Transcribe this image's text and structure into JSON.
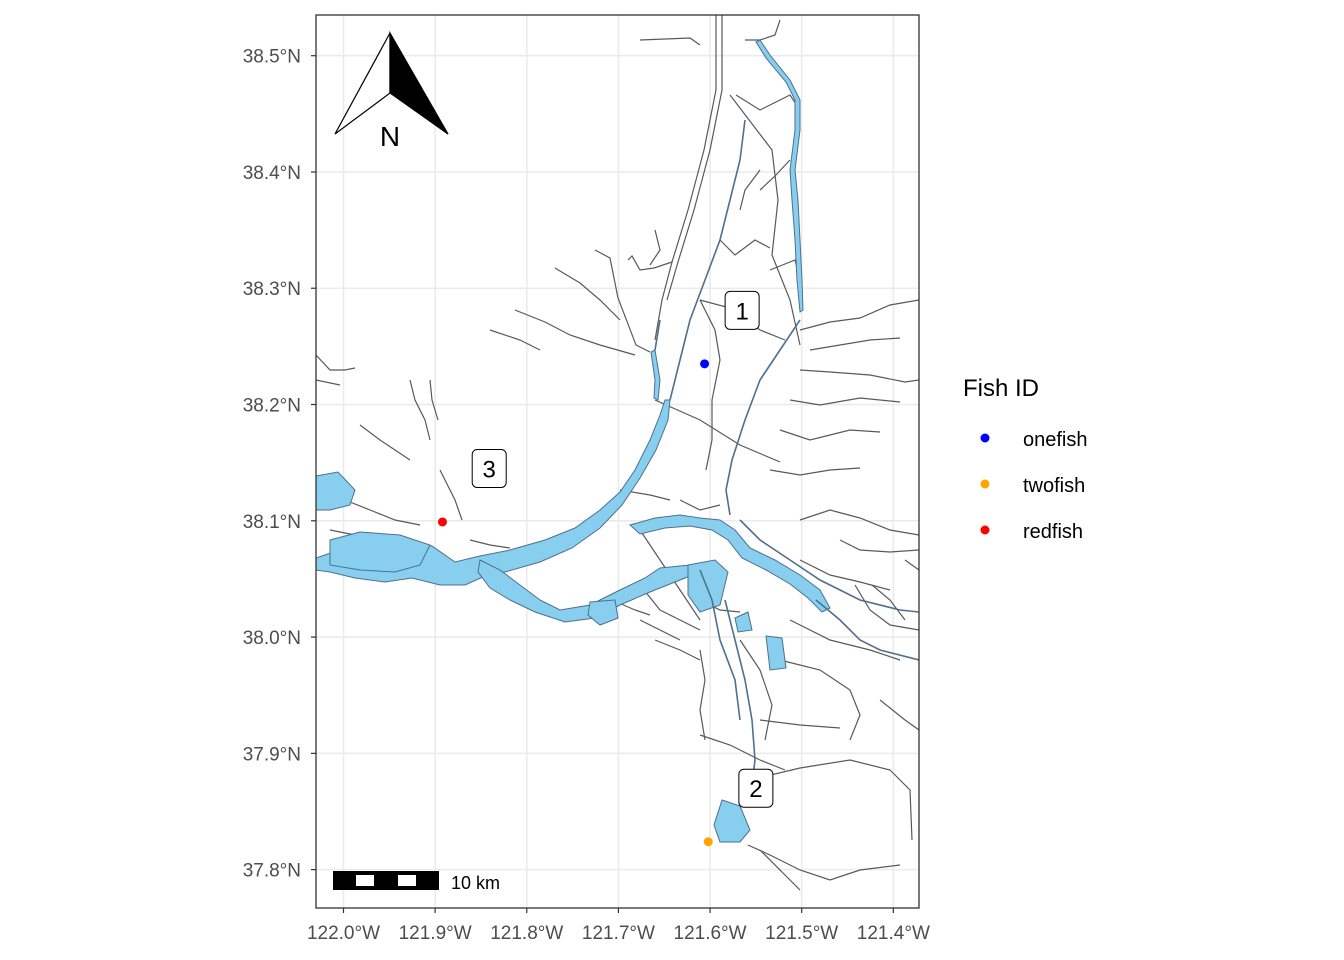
{
  "map": {
    "x_axis": {
      "ticks": [
        "122.0°W",
        "121.9°W",
        "121.8°W",
        "121.7°W",
        "121.6°W",
        "121.5°W",
        "121.4°W"
      ],
      "values": [
        -122.0,
        -121.9,
        -121.8,
        -121.7,
        -121.6,
        -121.5,
        -121.4
      ]
    },
    "y_axis": {
      "ticks": [
        "38.5°N",
        "38.4°N",
        "38.3°N",
        "38.2°N",
        "38.1°N",
        "38.0°N",
        "37.9°N",
        "37.8°N"
      ],
      "values": [
        38.5,
        38.4,
        38.3,
        38.2,
        38.1,
        38.0,
        37.9,
        37.8
      ]
    },
    "lon_range": [
      -122.03,
      -121.372
    ],
    "lat_range": [
      37.767,
      38.535
    ],
    "grid": true,
    "water_color": "#87ceef",
    "channel_color": "#4f6f8f",
    "boundary_color": "#595959",
    "region_labels": [
      {
        "text": "1",
        "lon": -121.565,
        "lat": 38.281
      },
      {
        "text": "3",
        "lon": -121.841,
        "lat": 38.145
      },
      {
        "text": "2",
        "lon": -121.55,
        "lat": 37.87
      }
    ],
    "points": [
      {
        "fish": "onefish",
        "lon": -121.606,
        "lat": 38.235,
        "color": "#0000ff"
      },
      {
        "fish": "twofish",
        "lon": -121.602,
        "lat": 37.824,
        "color": "#ffa500"
      },
      {
        "fish": "redfish",
        "lon": -121.892,
        "lat": 38.099,
        "color": "#ff0000"
      }
    ],
    "north_arrow": {
      "label": "N"
    },
    "scale_bar": {
      "label": "10 km"
    }
  },
  "legend": {
    "title": "Fish ID",
    "position": "right",
    "items": [
      {
        "label": "onefish",
        "color": "#0000ff"
      },
      {
        "label": "twofish",
        "color": "#ffa500"
      },
      {
        "label": "redfish",
        "color": "#ff0000"
      }
    ]
  }
}
